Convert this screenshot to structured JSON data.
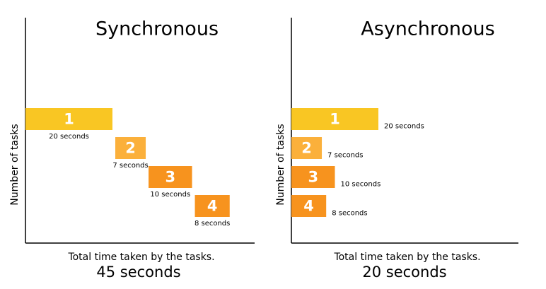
{
  "chart_data": [
    {
      "type": "gantt",
      "mode": "sequential",
      "title": "Synchronous",
      "y_label": "Number of tasks",
      "x_label": "Total time taken by the tasks.",
      "total_label": "45 seconds",
      "categories": [
        "1",
        "2",
        "3",
        "4"
      ],
      "values": [
        20,
        7,
        10,
        8
      ],
      "value_labels": [
        "20 seconds",
        "7 seconds",
        "10 seconds",
        "8 seconds"
      ],
      "colors": [
        "#f9c623",
        "#fbb03b",
        "#f7931e",
        "#f7931e"
      ]
    },
    {
      "type": "gantt",
      "mode": "parallel",
      "title": "Asynchronous",
      "y_label": "Number of tasks",
      "x_label": "Total time taken by the tasks.",
      "total_label": "20 seconds",
      "categories": [
        "1",
        "2",
        "3",
        "4"
      ],
      "values": [
        20,
        7,
        10,
        8
      ],
      "value_labels": [
        "20 seconds",
        "7 seconds",
        "10 seconds",
        "8 seconds"
      ],
      "colors": [
        "#f9c623",
        "#fbb03b",
        "#f7931e",
        "#f7931e"
      ]
    }
  ]
}
